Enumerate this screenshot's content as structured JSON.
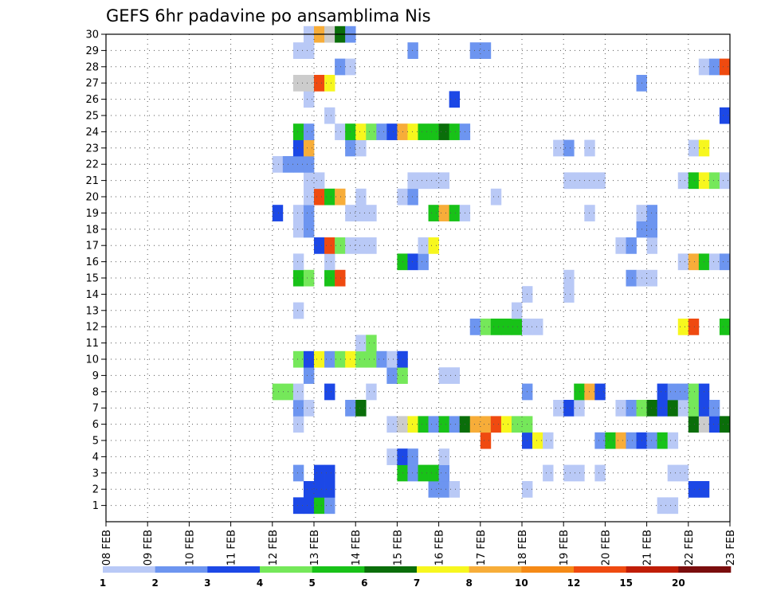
{
  "chart_data": {
    "type": "heatmap",
    "title": "GEFS 6hr padavine po ansamblima Nis",
    "xlabel": "",
    "ylabel": "",
    "x_ticks": [
      "08 FEB",
      "09 FEB",
      "10 FEB",
      "11 FEB",
      "12 FEB",
      "13 FEB",
      "14 FEB",
      "15 FEB",
      "16 FEB",
      "17 FEB",
      "18 FEB",
      "19 FEB",
      "20 FEB",
      "21 FEB",
      "22 FEB",
      "23 FEB"
    ],
    "y_ticks": [
      "1",
      "2",
      "3",
      "4",
      "5",
      "6",
      "7",
      "8",
      "9",
      "10",
      "11",
      "12",
      "13",
      "14",
      "15",
      "16",
      "17",
      "18",
      "19",
      "20",
      "21",
      "22",
      "23",
      "24",
      "25",
      "26",
      "27",
      "28",
      "29",
      "30"
    ],
    "xlim": [
      0,
      60
    ],
    "ylim": [
      0,
      30
    ],
    "x_unit": "6-hour steps from 08 FEB 00Z",
    "grid": true,
    "colorbar": {
      "placement": "bottom",
      "thresholds": [
        "1",
        "2",
        "3",
        "4",
        "5",
        "6",
        "7",
        "8",
        "10",
        "12",
        "15",
        "20"
      ],
      "colors": [
        "#b9c9f6",
        "#6d95f0",
        "#1c48e6",
        "#75e85a",
        "#18c218",
        "#0a6e0a",
        "#f7f71e",
        "#f7ad39",
        "#f58a16",
        "#ef4a10",
        "#c01d06",
        "#7a0d0d"
      ]
    },
    "values": [
      [
        1,
        18,
        3
      ],
      [
        1,
        19,
        3
      ],
      [
        1,
        20,
        5
      ],
      [
        1,
        21,
        2
      ],
      [
        1,
        53,
        1
      ],
      [
        1,
        54,
        1
      ],
      [
        2,
        19,
        3
      ],
      [
        2,
        20,
        3
      ],
      [
        2,
        21,
        3
      ],
      [
        2,
        31,
        2
      ],
      [
        2,
        32,
        2
      ],
      [
        2,
        33,
        1
      ],
      [
        2,
        40,
        1
      ],
      [
        2,
        56,
        3
      ],
      [
        2,
        57,
        3
      ],
      [
        3,
        18,
        2
      ],
      [
        3,
        20,
        3
      ],
      [
        3,
        21,
        3
      ],
      [
        3,
        28,
        5
      ],
      [
        3,
        29,
        2
      ],
      [
        3,
        30,
        5
      ],
      [
        3,
        31,
        5
      ],
      [
        3,
        32,
        2
      ],
      [
        3,
        42,
        1
      ],
      [
        3,
        44,
        1
      ],
      [
        3,
        45,
        1
      ],
      [
        3,
        47,
        1
      ],
      [
        3,
        54,
        1
      ],
      [
        3,
        55,
        1
      ],
      [
        4,
        27,
        1
      ],
      [
        4,
        28,
        3
      ],
      [
        4,
        29,
        2
      ],
      [
        4,
        32,
        1
      ],
      [
        5,
        36,
        10
      ],
      [
        5,
        40,
        3
      ],
      [
        5,
        41,
        7
      ],
      [
        5,
        42,
        1
      ],
      [
        5,
        47,
        2
      ],
      [
        5,
        48,
        5
      ],
      [
        5,
        49,
        8
      ],
      [
        5,
        50,
        2
      ],
      [
        5,
        51,
        3
      ],
      [
        5,
        52,
        2
      ],
      [
        5,
        53,
        5
      ],
      [
        5,
        54,
        1
      ],
      [
        6,
        18,
        1
      ],
      [
        6,
        27,
        1
      ],
      [
        6,
        28,
        15
      ],
      [
        6,
        29,
        7
      ],
      [
        6,
        30,
        5
      ],
      [
        6,
        31,
        2
      ],
      [
        6,
        32,
        5
      ],
      [
        6,
        33,
        2
      ],
      [
        6,
        34,
        6
      ],
      [
        6,
        35,
        8
      ],
      [
        6,
        36,
        8
      ],
      [
        6,
        37,
        10
      ],
      [
        6,
        38,
        7
      ],
      [
        6,
        39,
        4
      ],
      [
        6,
        40,
        4
      ],
      [
        6,
        56,
        6
      ],
      [
        6,
        57,
        15
      ],
      [
        6,
        58,
        3
      ],
      [
        6,
        59,
        6
      ],
      [
        7,
        18,
        2
      ],
      [
        7,
        19,
        1
      ],
      [
        7,
        23,
        2
      ],
      [
        7,
        24,
        6
      ],
      [
        7,
        43,
        1
      ],
      [
        7,
        44,
        3
      ],
      [
        7,
        45,
        1
      ],
      [
        7,
        49,
        1
      ],
      [
        7,
        50,
        2
      ],
      [
        7,
        51,
        4
      ],
      [
        7,
        52,
        6
      ],
      [
        7,
        53,
        3
      ],
      [
        7,
        54,
        6
      ],
      [
        7,
        55,
        1
      ],
      [
        7,
        56,
        4
      ],
      [
        7,
        57,
        3
      ],
      [
        7,
        58,
        2
      ],
      [
        8,
        16,
        4
      ],
      [
        8,
        17,
        4
      ],
      [
        8,
        18,
        1
      ],
      [
        8,
        21,
        3
      ],
      [
        8,
        25,
        1
      ],
      [
        8,
        40,
        2
      ],
      [
        8,
        45,
        5
      ],
      [
        8,
        46,
        8
      ],
      [
        8,
        47,
        3
      ],
      [
        8,
        53,
        3
      ],
      [
        8,
        54,
        2
      ],
      [
        8,
        55,
        2
      ],
      [
        8,
        56,
        4
      ],
      [
        8,
        57,
        3
      ],
      [
        9,
        19,
        2
      ],
      [
        9,
        27,
        2
      ],
      [
        9,
        28,
        4
      ],
      [
        9,
        32,
        1
      ],
      [
        9,
        33,
        1
      ],
      [
        10,
        18,
        4
      ],
      [
        10,
        19,
        3
      ],
      [
        10,
        20,
        7
      ],
      [
        10,
        21,
        2
      ],
      [
        10,
        22,
        4
      ],
      [
        10,
        23,
        7
      ],
      [
        10,
        24,
        4
      ],
      [
        10,
        25,
        4
      ],
      [
        10,
        26,
        2
      ],
      [
        10,
        27,
        1
      ],
      [
        10,
        28,
        3
      ],
      [
        11,
        24,
        1
      ],
      [
        11,
        25,
        4
      ],
      [
        12,
        35,
        2
      ],
      [
        12,
        36,
        4
      ],
      [
        12,
        37,
        5
      ],
      [
        12,
        38,
        5
      ],
      [
        12,
        39,
        5
      ],
      [
        12,
        40,
        1
      ],
      [
        12,
        41,
        1
      ],
      [
        12,
        55,
        7
      ],
      [
        12,
        56,
        10
      ],
      [
        12,
        59,
        5
      ],
      [
        13,
        18,
        1
      ],
      [
        13,
        39,
        1
      ],
      [
        14,
        40,
        1
      ],
      [
        14,
        44,
        1
      ],
      [
        15,
        18,
        5
      ],
      [
        15,
        19,
        4
      ],
      [
        15,
        21,
        5
      ],
      [
        15,
        22,
        10
      ],
      [
        15,
        44,
        1
      ],
      [
        15,
        50,
        2
      ],
      [
        15,
        51,
        1
      ],
      [
        15,
        52,
        1
      ],
      [
        16,
        18,
        1
      ],
      [
        16,
        21,
        1
      ],
      [
        16,
        28,
        5
      ],
      [
        16,
        29,
        3
      ],
      [
        16,
        30,
        2
      ],
      [
        16,
        55,
        1
      ],
      [
        16,
        56,
        8
      ],
      [
        16,
        57,
        5
      ],
      [
        16,
        58,
        1
      ],
      [
        16,
        59,
        2
      ],
      [
        17,
        20,
        3
      ],
      [
        17,
        21,
        10
      ],
      [
        17,
        22,
        4
      ],
      [
        17,
        23,
        1
      ],
      [
        17,
        24,
        1
      ],
      [
        17,
        25,
        1
      ],
      [
        17,
        30,
        1
      ],
      [
        17,
        31,
        7
      ],
      [
        17,
        49,
        1
      ],
      [
        17,
        50,
        2
      ],
      [
        17,
        52,
        1
      ],
      [
        18,
        18,
        1
      ],
      [
        18,
        19,
        2
      ],
      [
        18,
        51,
        2
      ],
      [
        18,
        52,
        2
      ],
      [
        19,
        16,
        3
      ],
      [
        19,
        18,
        1
      ],
      [
        19,
        19,
        2
      ],
      [
        19,
        23,
        1
      ],
      [
        19,
        24,
        1
      ],
      [
        19,
        25,
        1
      ],
      [
        19,
        31,
        5
      ],
      [
        19,
        32,
        8
      ],
      [
        19,
        33,
        5
      ],
      [
        19,
        34,
        1
      ],
      [
        19,
        46,
        1
      ],
      [
        19,
        51,
        1
      ],
      [
        19,
        52,
        2
      ],
      [
        20,
        19,
        1
      ],
      [
        20,
        20,
        10
      ],
      [
        20,
        21,
        5
      ],
      [
        20,
        22,
        8
      ],
      [
        20,
        24,
        1
      ],
      [
        20,
        28,
        1
      ],
      [
        20,
        29,
        2
      ],
      [
        20,
        37,
        1
      ],
      [
        21,
        19,
        1
      ],
      [
        21,
        20,
        1
      ],
      [
        21,
        29,
        1
      ],
      [
        21,
        30,
        1
      ],
      [
        21,
        31,
        1
      ],
      [
        21,
        32,
        1
      ],
      [
        21,
        44,
        1
      ],
      [
        21,
        45,
        1
      ],
      [
        21,
        46,
        1
      ],
      [
        21,
        47,
        1
      ],
      [
        21,
        55,
        1
      ],
      [
        21,
        56,
        5
      ],
      [
        21,
        57,
        7
      ],
      [
        21,
        58,
        4
      ],
      [
        21,
        59,
        1
      ],
      [
        22,
        16,
        1
      ],
      [
        22,
        17,
        2
      ],
      [
        22,
        18,
        2
      ],
      [
        22,
        19,
        2
      ],
      [
        23,
        18,
        3
      ],
      [
        23,
        19,
        8
      ],
      [
        23,
        23,
        2
      ],
      [
        23,
        24,
        1
      ],
      [
        23,
        43,
        1
      ],
      [
        23,
        44,
        2
      ],
      [
        23,
        46,
        1
      ],
      [
        23,
        56,
        1
      ],
      [
        23,
        57,
        7
      ],
      [
        24,
        18,
        5
      ],
      [
        24,
        19,
        2
      ],
      [
        24,
        22,
        1
      ],
      [
        24,
        23,
        5
      ],
      [
        24,
        24,
        7
      ],
      [
        24,
        25,
        4
      ],
      [
        24,
        26,
        2
      ],
      [
        24,
        27,
        3
      ],
      [
        24,
        28,
        8
      ],
      [
        24,
        29,
        7
      ],
      [
        24,
        30,
        5
      ],
      [
        24,
        31,
        5
      ],
      [
        24,
        32,
        6
      ],
      [
        24,
        33,
        5
      ],
      [
        24,
        34,
        2
      ],
      [
        25,
        21,
        1
      ],
      [
        25,
        59,
        3
      ],
      [
        26,
        33,
        3
      ],
      [
        26,
        19,
        1
      ],
      [
        27,
        18,
        15
      ],
      [
        27,
        19,
        15
      ],
      [
        27,
        20,
        10
      ],
      [
        27,
        21,
        7
      ],
      [
        27,
        51,
        2
      ],
      [
        28,
        22,
        2
      ],
      [
        28,
        23,
        1
      ],
      [
        28,
        57,
        1
      ],
      [
        28,
        58,
        2
      ],
      [
        28,
        59,
        10
      ],
      [
        29,
        18,
        1
      ],
      [
        29,
        19,
        1
      ],
      [
        29,
        29,
        2
      ],
      [
        29,
        35,
        2
      ],
      [
        29,
        36,
        2
      ],
      [
        30,
        19,
        1
      ],
      [
        30,
        20,
        8
      ],
      [
        30,
        21,
        15
      ],
      [
        30,
        22,
        6
      ],
      [
        30,
        23,
        2
      ]
    ]
  }
}
